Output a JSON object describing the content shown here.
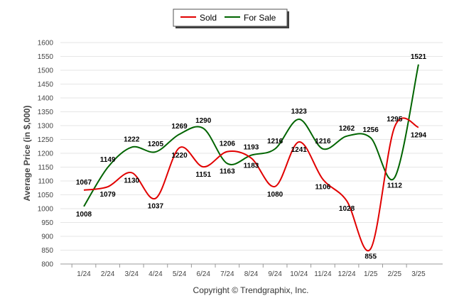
{
  "legend": {
    "items": [
      "Sold",
      "For Sale"
    ]
  },
  "footer": {
    "copyright": "Copyright © Trendgraphix, Inc."
  },
  "chart_data": {
    "type": "line",
    "categories": [
      "1/24",
      "2/24",
      "3/24",
      "4/24",
      "5/24",
      "6/24",
      "7/24",
      "8/24",
      "9/24",
      "10/24",
      "11/24",
      "12/24",
      "1/25",
      "2/25",
      "3/25"
    ],
    "series": [
      {
        "name": "Sold",
        "color": "#e10000",
        "values": [
          1067,
          1079,
          1130,
          1037,
          1220,
          1151,
          1206,
          1183,
          1080,
          1241,
          1106,
          1028,
          855,
          1295,
          1294
        ]
      },
      {
        "name": "For Sale",
        "color": "#006400",
        "values": [
          1008,
          1149,
          1222,
          1205,
          1269,
          1290,
          1163,
          1193,
          1216,
          1323,
          1216,
          1262,
          1256,
          1112,
          1521
        ]
      }
    ],
    "ylabel": "Average Price (in $,000)",
    "xlabel": "",
    "ylim": [
      800,
      1600
    ],
    "yticks": [
      800,
      850,
      900,
      950,
      1000,
      1050,
      1100,
      1150,
      1200,
      1250,
      1300,
      1350,
      1400,
      1450,
      1500,
      1550,
      1600
    ],
    "grid": true,
    "legend_position": "top-center"
  }
}
